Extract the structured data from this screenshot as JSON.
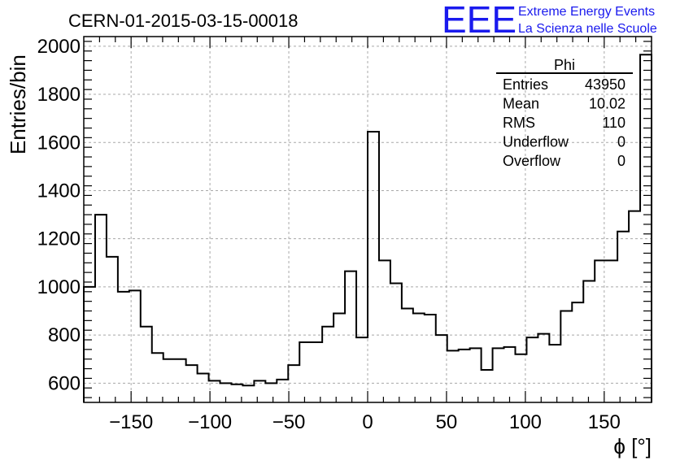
{
  "header": {
    "run_title": "CERN-01-2015-03-15-00018",
    "logo_text": "EEE",
    "logo_line1": "Extreme Energy Events",
    "logo_line2": "La Scienza nelle Scuole",
    "logo_color": "#1a1aee"
  },
  "stats": {
    "title": "Phi",
    "rows": [
      {
        "label": "Entries",
        "value": "43950"
      },
      {
        "label": "Mean",
        "value": "10.02"
      },
      {
        "label": "RMS",
        "value": "110"
      },
      {
        "label": "Underflow",
        "value": "0"
      },
      {
        "label": "Overflow",
        "value": "0"
      }
    ]
  },
  "chart_data": {
    "type": "bar",
    "histogram": true,
    "xlabel": "ϕ [°]",
    "ylabel": "Entries/bin",
    "xlim": [
      -180,
      180
    ],
    "ylim": [
      520,
      2040
    ],
    "bin_width": 7.2,
    "xticks": [
      -150,
      -100,
      -50,
      0,
      50,
      100,
      150
    ],
    "xtick_labels": [
      "−150",
      "−100",
      "−50",
      "0",
      "50",
      "100",
      "150"
    ],
    "yticks": [
      600,
      800,
      1000,
      1200,
      1400,
      1600,
      1800,
      2000
    ],
    "grid": true,
    "values": [
      1000,
      1300,
      1125,
      980,
      985,
      835,
      725,
      700,
      700,
      675,
      640,
      610,
      600,
      595,
      590,
      610,
      600,
      615,
      675,
      770,
      770,
      835,
      890,
      1065,
      790,
      1645,
      1110,
      1015,
      910,
      890,
      885,
      800,
      735,
      740,
      745,
      655,
      745,
      750,
      720,
      790,
      805,
      760,
      900,
      935,
      1025,
      1110,
      1110,
      1230,
      1315,
      1965
    ]
  }
}
